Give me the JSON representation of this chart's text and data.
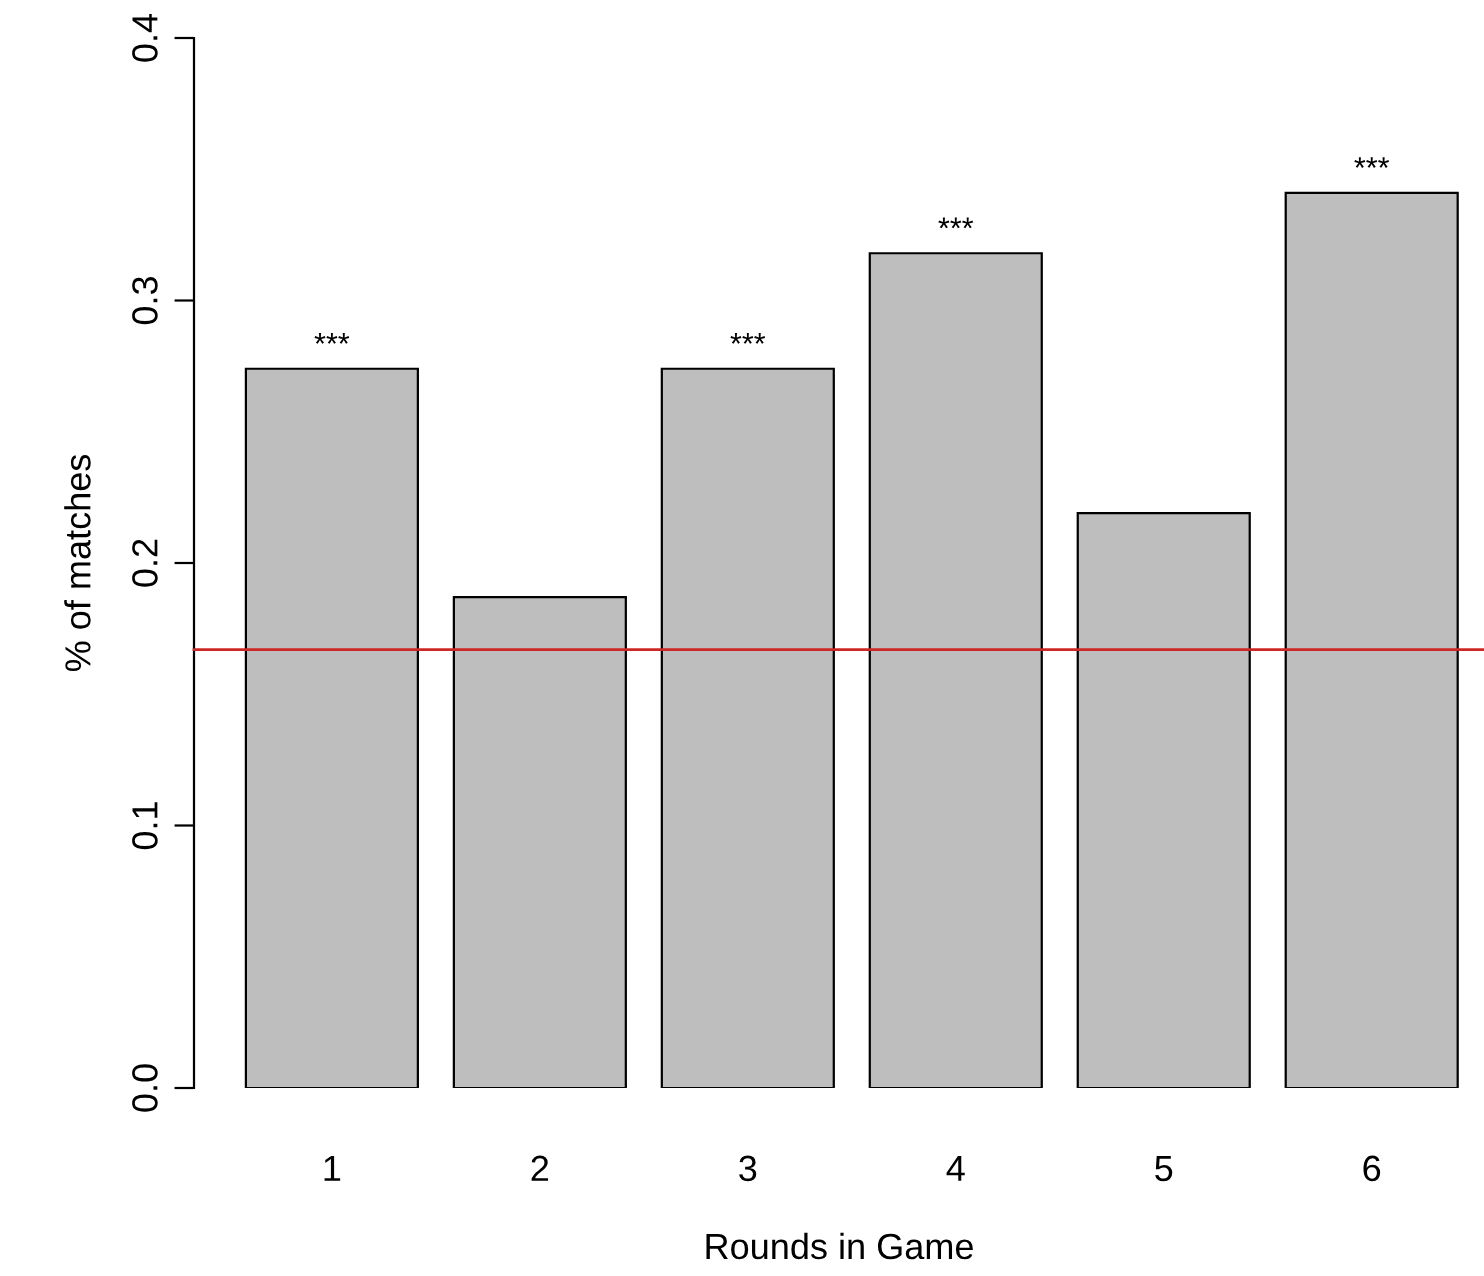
{
  "chart_data": {
    "type": "bar",
    "xlabel": "Rounds in Game",
    "ylabel": "% of matches",
    "categories": [
      "1",
      "2",
      "3",
      "4",
      "5",
      "6"
    ],
    "values": [
      0.274,
      0.187,
      0.274,
      0.318,
      0.219,
      0.341
    ],
    "color": "#bebebe",
    "ylim": [
      0,
      0.4
    ],
    "yticks": [
      {
        "value": 0,
        "label": "0.0"
      },
      0.1,
      0.2,
      0.3,
      0.4
    ],
    "grid": false,
    "legend": false,
    "ref_lines": [
      {
        "axis": "y",
        "value": 0.167,
        "color": "#cd2626"
      }
    ],
    "annotations": [
      {
        "text": "***",
        "x": "1",
        "y": 0.274
      },
      {
        "text": "***",
        "x": "3",
        "y": 0.274
      },
      {
        "text": "***",
        "x": "4",
        "y": 0.318
      },
      {
        "text": "***",
        "x": "6",
        "y": 0.341
      }
    ]
  }
}
